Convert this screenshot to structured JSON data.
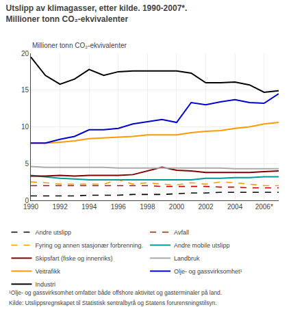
{
  "chart_data": {
    "type": "line",
    "title": "Utslipp av klimagasser, etter kilde. 1990-2007*.",
    "subtitle": "Millioner tonn CO₂-ekvivalenter",
    "ylabel": "Millioner tonn CO₂-ekvivalenter",
    "x": [
      1990,
      1991,
      1992,
      1993,
      1994,
      1995,
      1996,
      1997,
      1998,
      1999,
      2000,
      2001,
      2002,
      2003,
      2004,
      2005,
      2006,
      2007
    ],
    "series": [
      {
        "name": "Andre utslipp",
        "color": "#000000",
        "line_style": "dashed",
        "values": [
          0.6,
          0.6,
          0.6,
          0.6,
          0.7,
          0.7,
          0.7,
          0.8,
          0.8,
          0.8,
          0.9,
          1.0,
          1.0,
          1.1,
          1.1,
          1.1,
          1.1,
          1.1
        ]
      },
      {
        "name": "Avfall",
        "color": "#cc0000",
        "line_style": "dashed",
        "values": [
          2.0,
          2.0,
          2.0,
          2.0,
          2.0,
          2.0,
          2.0,
          2.0,
          2.0,
          1.9,
          1.9,
          1.9,
          1.9,
          1.8,
          1.8,
          1.7,
          1.7,
          1.7
        ]
      },
      {
        "name": "Fyring og annen stasjonær forbrenning.",
        "color": "#ff9900",
        "line_style": "dashed",
        "values": [
          2.5,
          2.4,
          2.2,
          2.2,
          2.2,
          2.2,
          2.8,
          2.2,
          2.4,
          2.2,
          2.1,
          2.4,
          2.2,
          2.5,
          2.4,
          2.2,
          2.0,
          2.0
        ]
      },
      {
        "name": "Andre mobile utslipp",
        "color": "#009999",
        "line_style": "solid",
        "values": [
          3.4,
          3.2,
          3.0,
          2.9,
          2.8,
          2.8,
          2.8,
          2.8,
          2.8,
          2.8,
          2.8,
          2.8,
          3.0,
          3.0,
          3.1,
          3.1,
          3.2,
          3.2
        ]
      },
      {
        "name": "Skipsfart (fiske og innenriks)",
        "color": "#800000",
        "line_style": "solid",
        "values": [
          3.3,
          3.3,
          3.4,
          3.3,
          3.4,
          3.4,
          3.4,
          3.5,
          4.0,
          4.5,
          4.1,
          4.0,
          3.8,
          3.8,
          3.8,
          3.8,
          3.9,
          4.0
        ]
      },
      {
        "name": "Landbruk",
        "color": "#aaaaaa",
        "line_style": "solid",
        "values": [
          4.6,
          4.5,
          4.5,
          4.5,
          4.5,
          4.5,
          4.4,
          4.4,
          4.4,
          4.4,
          4.4,
          4.4,
          4.4,
          4.4,
          4.3,
          4.3,
          4.3,
          4.3
        ]
      },
      {
        "name": "Veitrafikk",
        "color": "#ff9900",
        "line_style": "solid",
        "values": [
          7.8,
          7.8,
          7.9,
          8.1,
          8.4,
          8.5,
          8.6,
          8.7,
          8.9,
          8.9,
          8.9,
          9.2,
          9.4,
          9.5,
          9.8,
          10.0,
          10.4,
          10.6
        ]
      },
      {
        "name": "Olje- og gassvirksomhet¹",
        "color": "#0000cc",
        "line_style": "solid",
        "values": [
          7.8,
          7.8,
          8.3,
          8.7,
          9.6,
          9.6,
          9.8,
          10.4,
          10.7,
          11.0,
          10.6,
          13.3,
          13.0,
          13.4,
          13.7,
          13.3,
          13.2,
          14.5
        ]
      },
      {
        "name": "Industri",
        "color": "#000000",
        "line_style": "solid",
        "values": [
          19.5,
          17.0,
          15.8,
          16.5,
          17.8,
          17.0,
          17.5,
          17.6,
          17.6,
          17.6,
          17.6,
          17.3,
          16.0,
          16.0,
          16.1,
          15.7,
          14.7,
          14.9
        ]
      }
    ],
    "xlim": [
      1990,
      2007
    ],
    "xticks": [
      1990,
      1992,
      1994,
      1996,
      1998,
      2000,
      2002,
      2004,
      {
        "value": 2006,
        "label": "2006*"
      }
    ],
    "ylim": [
      0,
      20
    ],
    "yticks": [
      0,
      5,
      10,
      15,
      20
    ],
    "grid": true,
    "legend": "bottom",
    "annotations": [
      "¹Olje- og gassvirksomhet omfatter både offshore aktivitet og gasterminaler på land.",
      "Kilde: Utslippsregnskapet til Statistisk sentralbyrå og Statens forurensningstilsyn."
    ]
  }
}
